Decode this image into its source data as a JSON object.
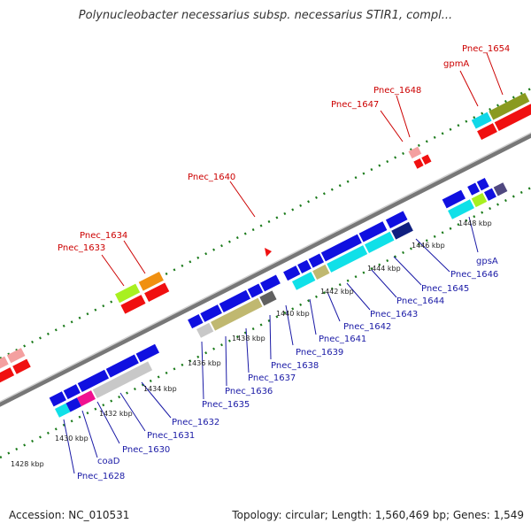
{
  "title": "Polynucleobacter necessarius subsp. necessarius STIR1, compl...",
  "footer": {
    "accession": "Accession: NC_010531",
    "topology": "Topology: circular; Length: 1,560,469 bp; Genes: 1,549"
  },
  "scale": {
    "ticks": [
      "1428 kbp",
      "1430 kbp",
      "1432 kbp",
      "1434 kbp",
      "1436 kbp",
      "1438 kbp",
      "1440 kbp",
      "1442 kbp",
      "1444 kbp",
      "1446 kbp",
      "1448 kbp"
    ]
  },
  "labels": {
    "forward": [
      "Pnec_1633",
      "Pnec_1634",
      "Pnec_1640",
      "Pnec_1647",
      "Pnec_1648",
      "gpmA",
      "Pnec_1654"
    ],
    "reverse": [
      "Pnec_1628",
      "coaD",
      "Pnec_1630",
      "Pnec_1631",
      "Pnec_1632",
      "Pnec_1635",
      "Pnec_1636",
      "Pnec_1637",
      "Pnec_1638",
      "Pnec_1639",
      "Pnec_1641",
      "Pnec_1642",
      "Pnec_1643",
      "Pnec_1644",
      "Pnec_1645",
      "Pnec_1646",
      "gpsA"
    ]
  },
  "colors": {
    "cds": "#1010e0",
    "rrna": "#00e0e0",
    "trna": "#ff1010",
    "backbone": "#8a8a8a",
    "forward_label": "#cc0000",
    "reverse_label": "#1a1aa6"
  }
}
